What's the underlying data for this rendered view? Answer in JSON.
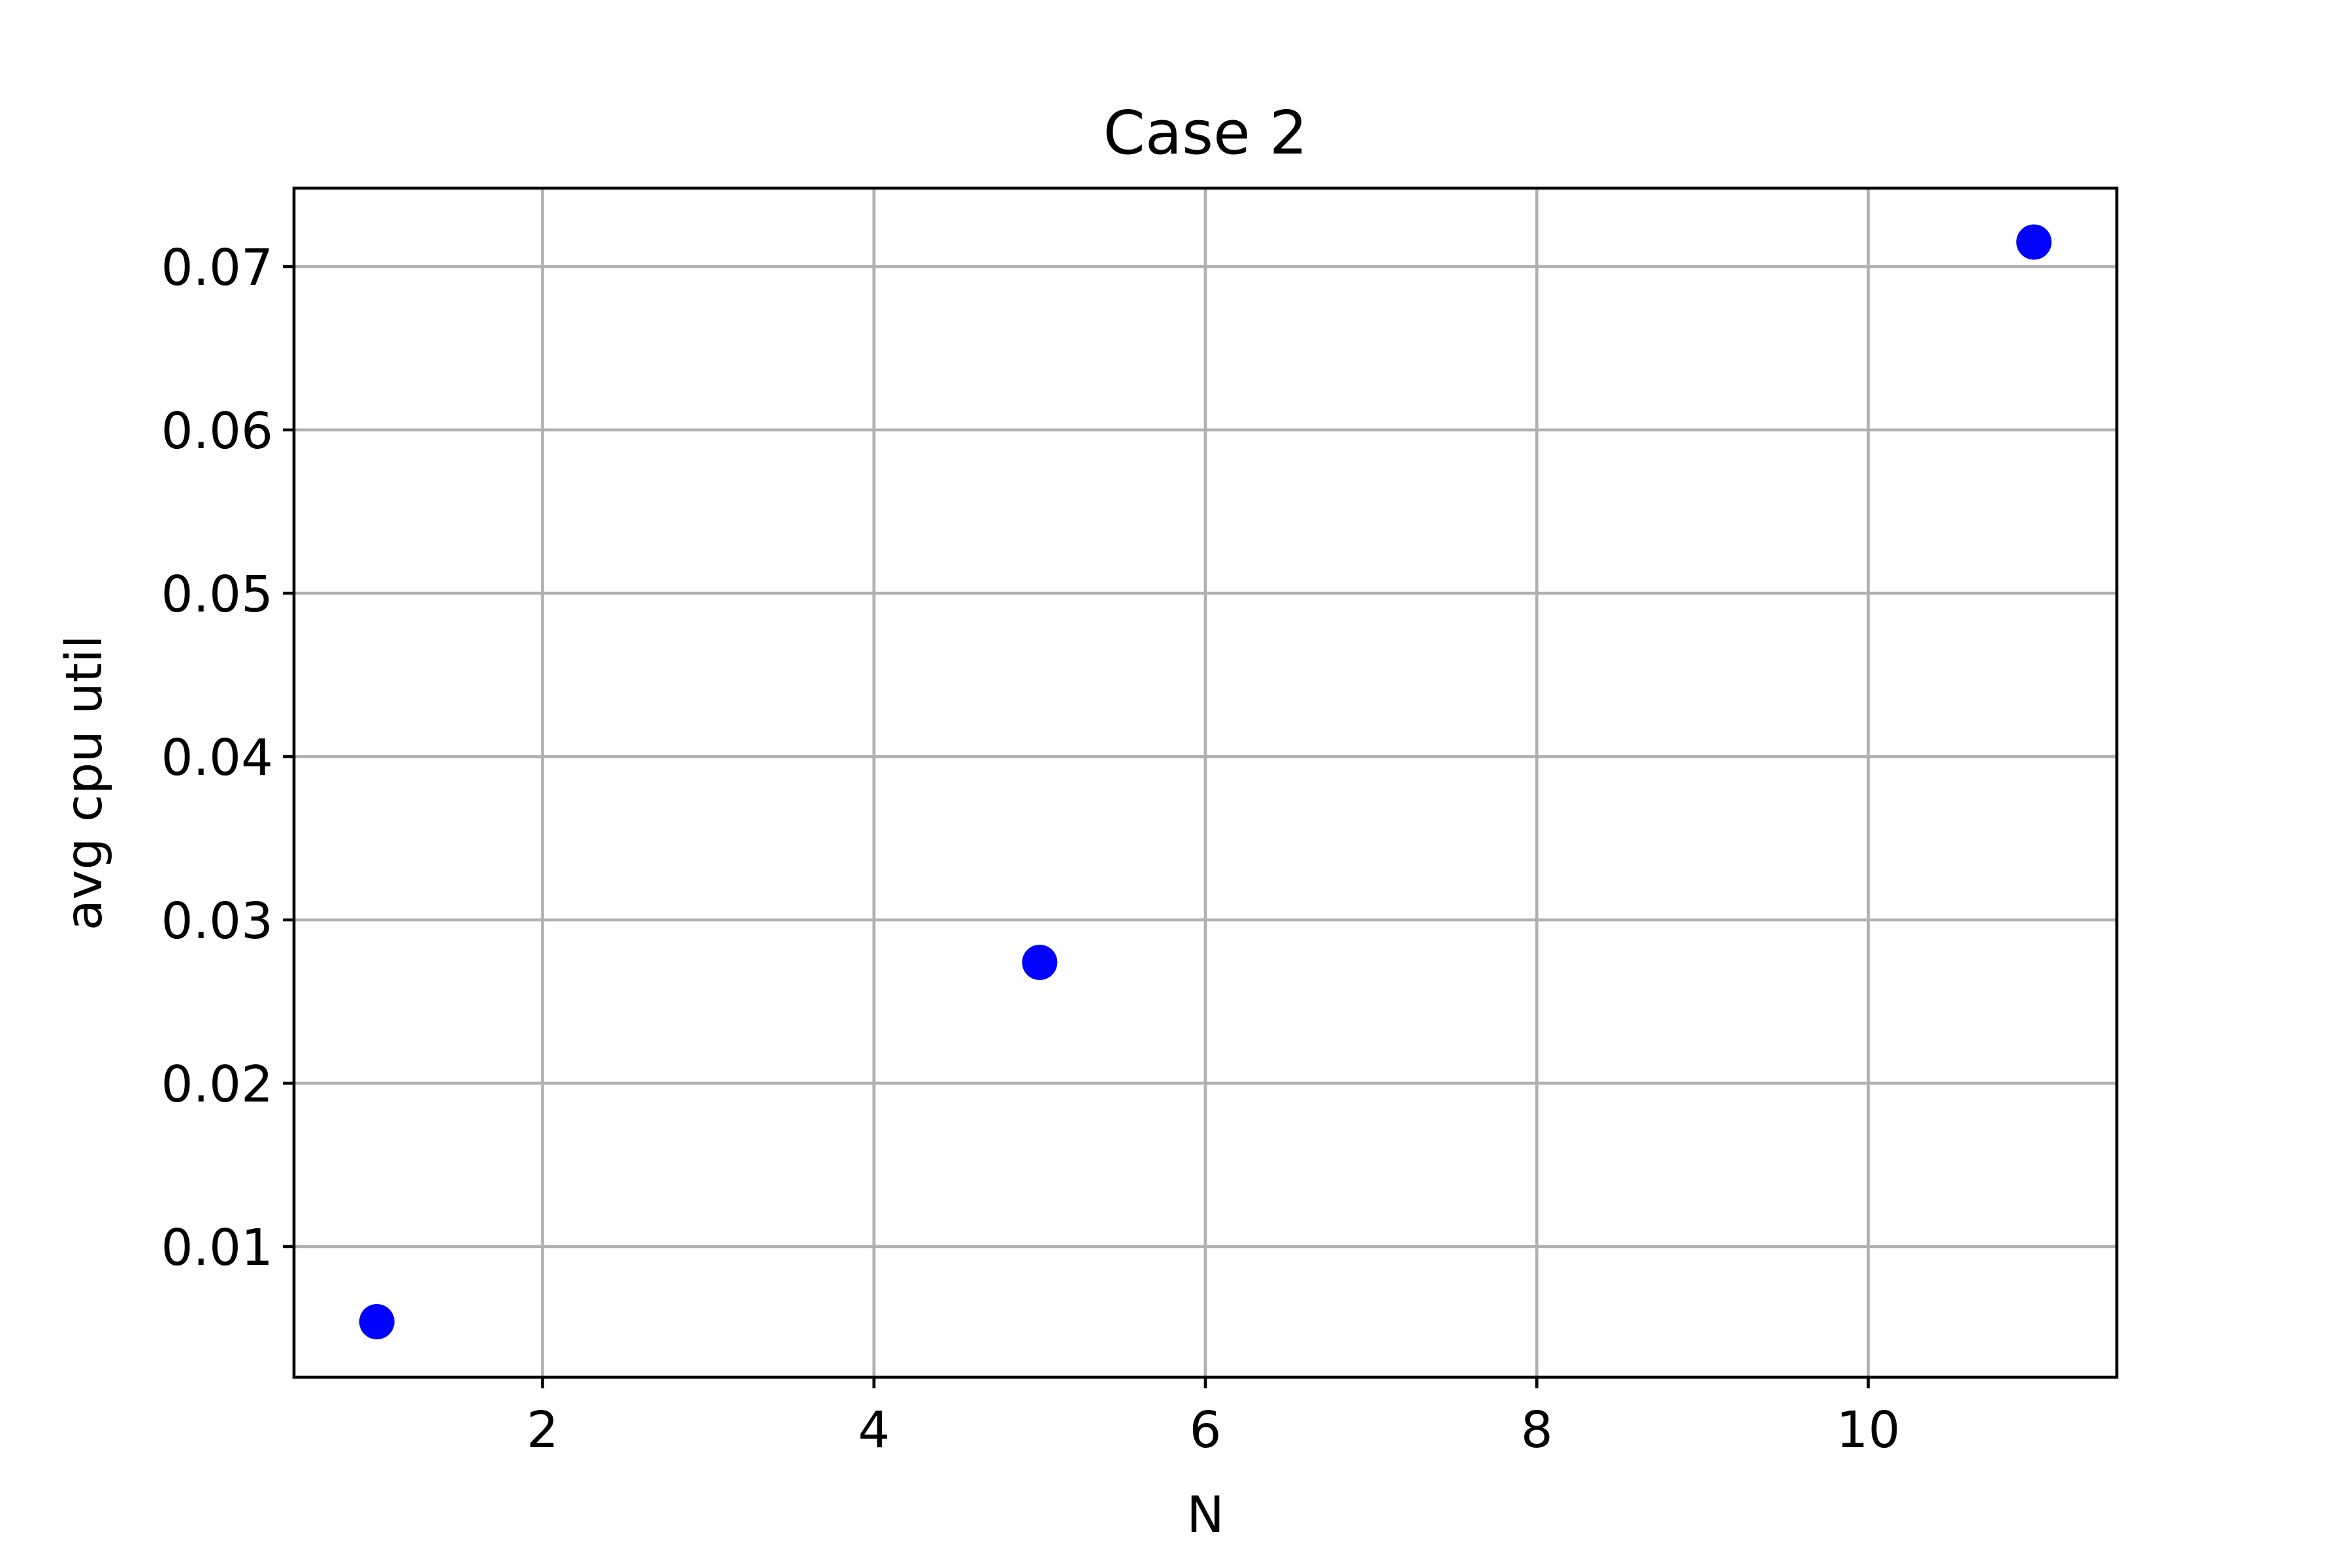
{
  "chart_data": {
    "type": "scatter",
    "title": "Case 2",
    "xlabel": "N",
    "ylabel": "avg cpu util",
    "xlim": [
      0.5,
      11.5
    ],
    "ylim": [
      0.002,
      0.0748
    ],
    "x_ticks": [
      2,
      4,
      6,
      8,
      10
    ],
    "x_tick_labels": [
      "2",
      "4",
      "6",
      "8",
      "10"
    ],
    "y_ticks": [
      0.01,
      0.02,
      0.03,
      0.04,
      0.05,
      0.06,
      0.07
    ],
    "y_tick_labels": [
      "0.01",
      "0.02",
      "0.03",
      "0.04",
      "0.05",
      "0.06",
      "0.07"
    ],
    "grid": true,
    "series": [
      {
        "color": "#0000ff",
        "x": [
          1,
          5,
          11
        ],
        "y": [
          0.0054,
          0.0274,
          0.0715
        ]
      }
    ]
  }
}
